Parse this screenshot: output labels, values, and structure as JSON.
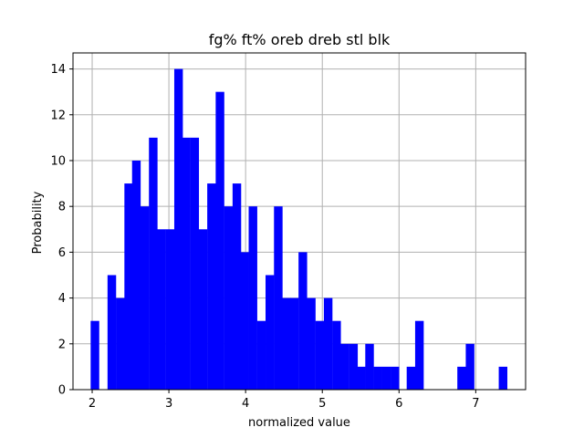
{
  "chart_data": {
    "type": "bar",
    "title": "fg% ft% oreb dreb stl blk",
    "xlabel": "normalized value",
    "ylabel": "Probability",
    "xlim": [
      1.75,
      7.65
    ],
    "ylim": [
      0,
      14.7
    ],
    "grid": true,
    "bar_color": "#0000ff",
    "bin_width": 0.1085,
    "x_ticks": [
      2,
      3,
      4,
      5,
      6,
      7
    ],
    "y_ticks": [
      0,
      2,
      4,
      6,
      8,
      10,
      12,
      14
    ],
    "x_tick_labels": [
      "2",
      "3",
      "4",
      "5",
      "6",
      "7"
    ],
    "y_tick_labels": [
      "0",
      "2",
      "4",
      "6",
      "8",
      "10",
      "12",
      "14"
    ],
    "bin_starts": [
      1.98,
      2.09,
      2.2,
      2.31,
      2.42,
      2.52,
      2.63,
      2.74,
      2.85,
      2.96,
      3.07,
      3.17,
      3.28,
      3.39,
      3.5,
      3.61,
      3.72,
      3.83,
      3.93,
      4.04,
      4.15,
      4.26,
      4.37,
      4.48,
      4.58,
      4.69,
      4.8,
      4.91,
      5.02,
      5.13,
      5.24,
      5.35,
      5.45,
      5.56,
      5.67,
      5.78,
      5.89,
      6.0,
      6.1,
      6.21,
      6.32,
      6.43,
      6.54,
      6.65,
      6.76,
      6.87,
      6.98,
      7.09,
      7.19,
      7.3
    ],
    "values": [
      3,
      0,
      5,
      4,
      9,
      10,
      8,
      11,
      7,
      7,
      14,
      11,
      11,
      7,
      9,
      13,
      8,
      9,
      6,
      8,
      3,
      5,
      8,
      4,
      4,
      6,
      4,
      3,
      4,
      3,
      2,
      2,
      1,
      2,
      1,
      1,
      1,
      0,
      1,
      3,
      0,
      0,
      0,
      0,
      1,
      2,
      0,
      0,
      0,
      1
    ]
  }
}
